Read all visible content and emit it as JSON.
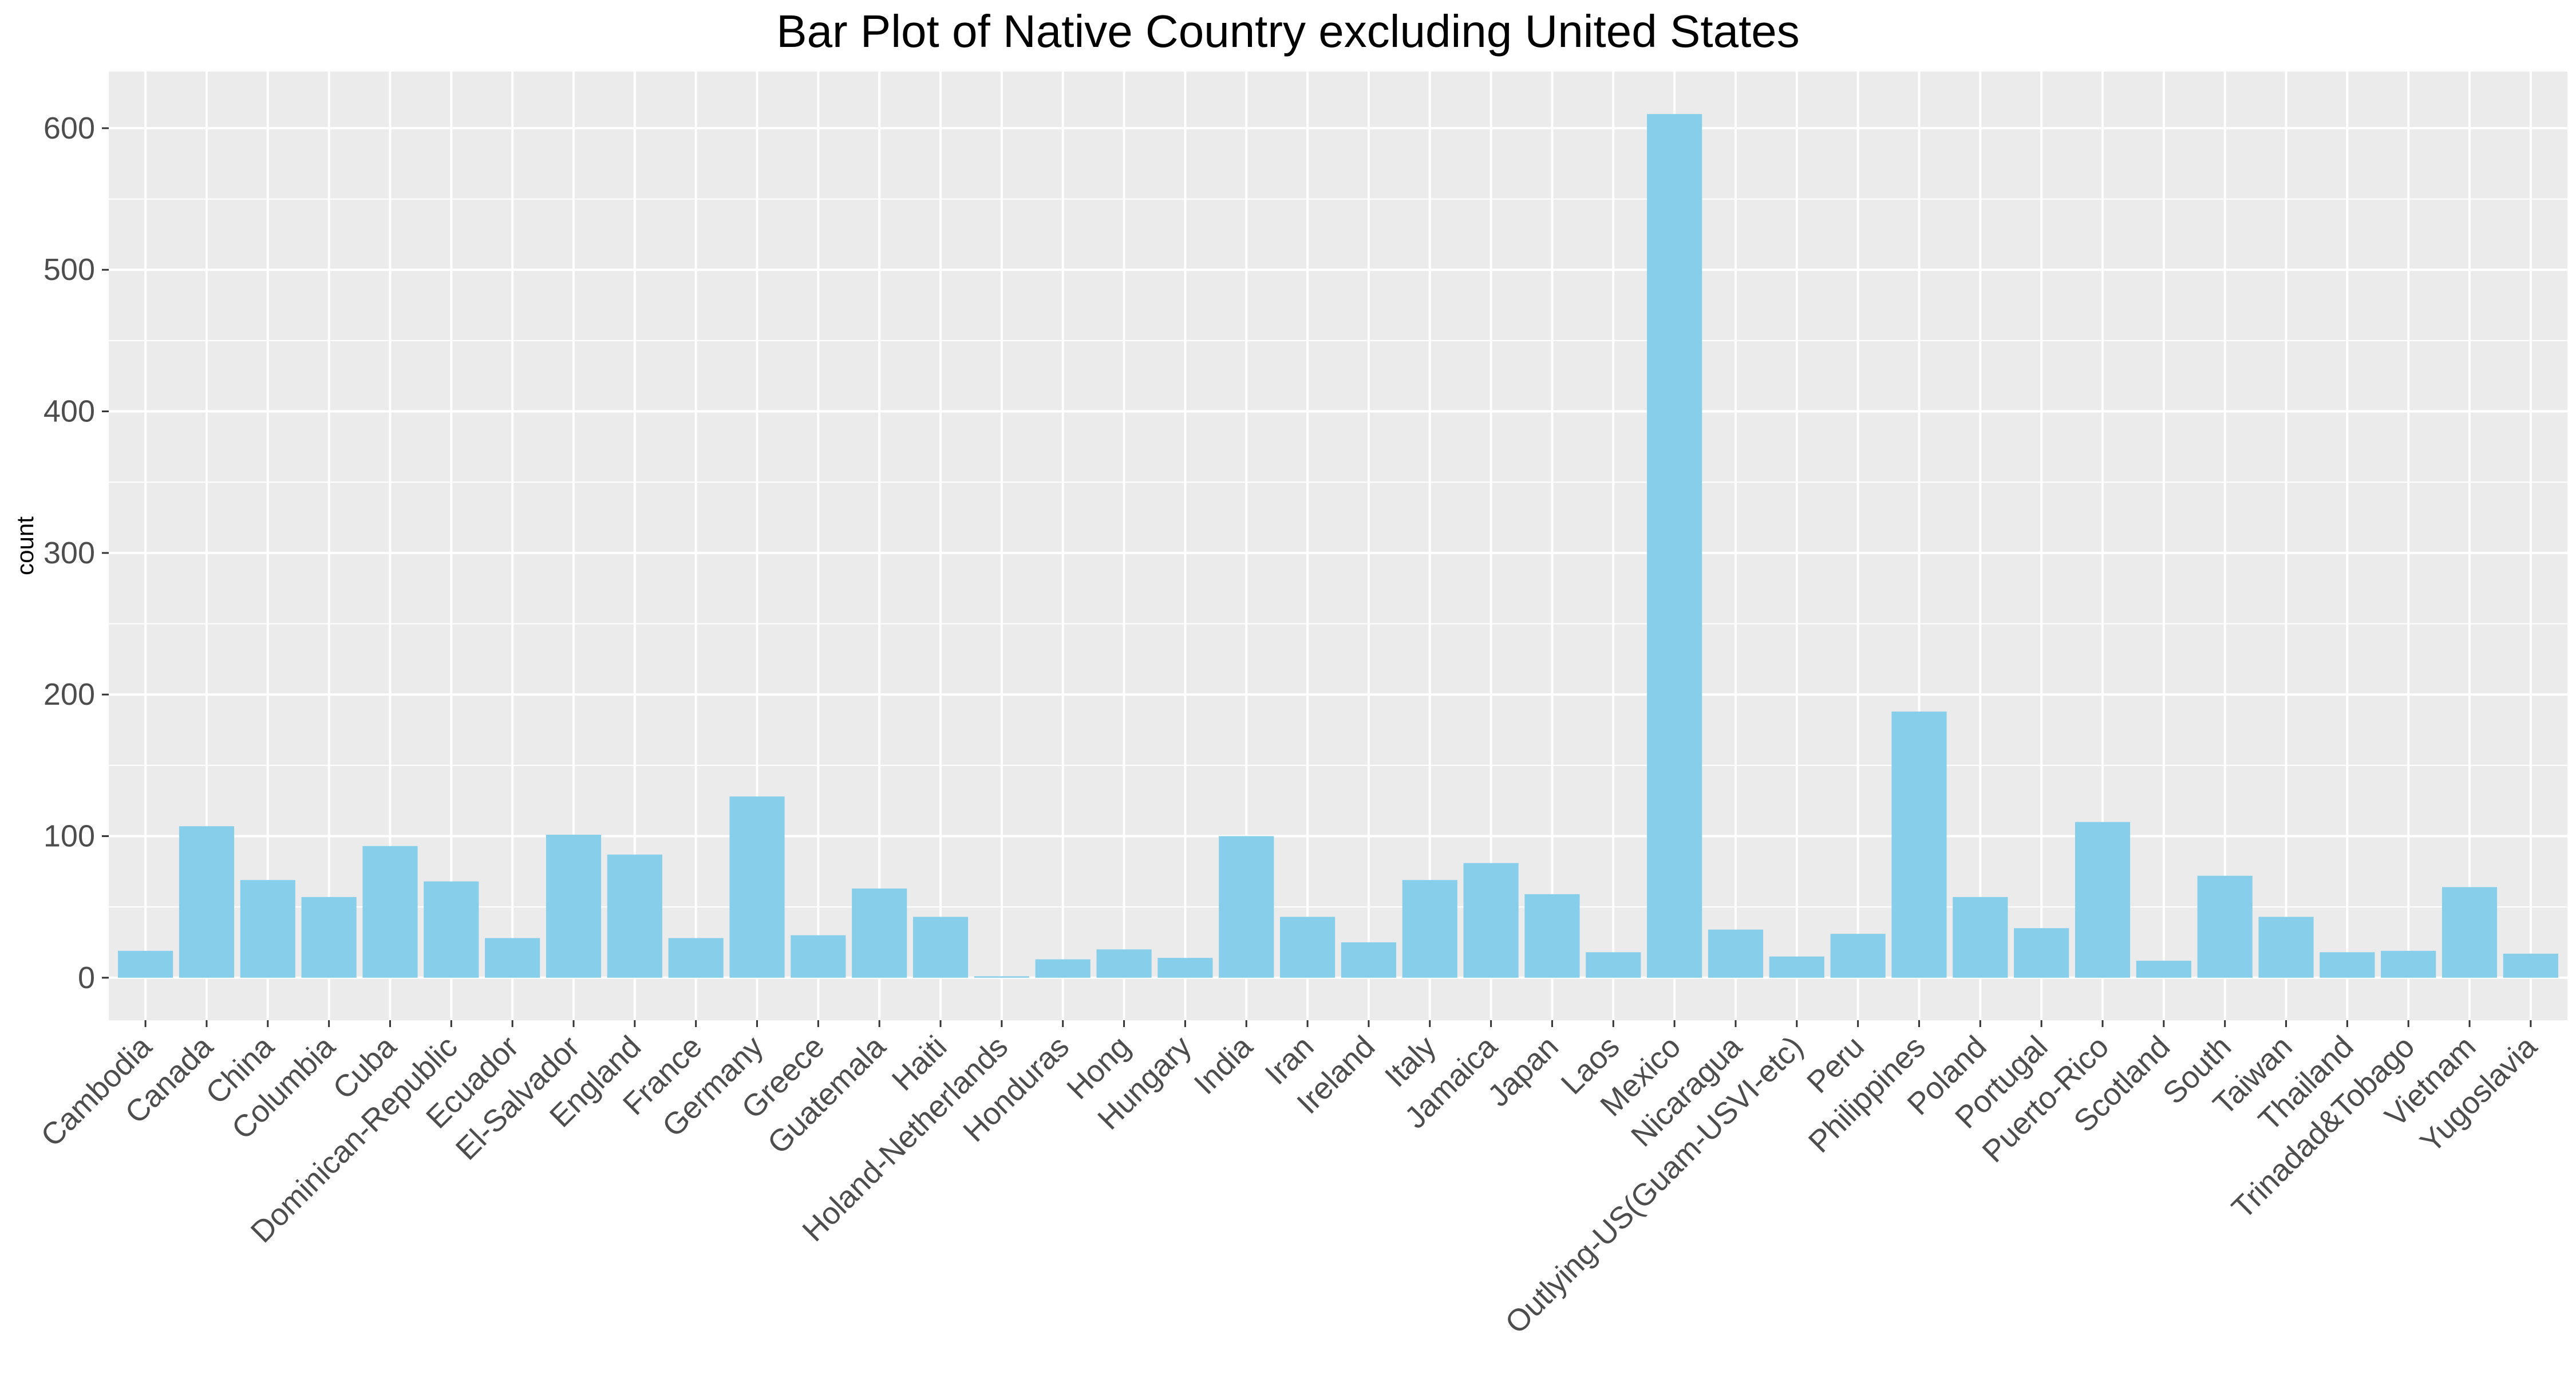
{
  "chart_data": {
    "type": "bar",
    "title": "Bar Plot of Native Country excluding United States",
    "xlabel": "",
    "ylabel": "count",
    "ylim": [
      -30,
      640
    ],
    "yticks": [
      0,
      100,
      200,
      300,
      400,
      500,
      600
    ],
    "grid": true,
    "legend": "none",
    "colors": {
      "bar": "#87ceeb",
      "panel": "#ebebeb",
      "grid": "#ffffff",
      "tick_text": "#4d4d4d"
    },
    "categories": [
      "Cambodia",
      "Canada",
      "China",
      "Columbia",
      "Cuba",
      "Dominican-Republic",
      "Ecuador",
      "El-Salvador",
      "England",
      "France",
      "Germany",
      "Greece",
      "Guatemala",
      "Haiti",
      "Holand-Netherlands",
      "Honduras",
      "Hong",
      "Hungary",
      "India",
      "Iran",
      "Ireland",
      "Italy",
      "Jamaica",
      "Japan",
      "Laos",
      "Mexico",
      "Nicaragua",
      "Outlying-US(Guam-USVI-etc)",
      "Peru",
      "Philippines",
      "Poland",
      "Portugal",
      "Puerto-Rico",
      "Scotland",
      "South",
      "Taiwan",
      "Thailand",
      "Trinadad&Tobago",
      "Vietnam",
      "Yugoslavia"
    ],
    "values": [
      19,
      107,
      69,
      57,
      93,
      68,
      28,
      101,
      87,
      28,
      128,
      30,
      63,
      43,
      1,
      13,
      20,
      14,
      100,
      43,
      25,
      69,
      81,
      59,
      18,
      610,
      34,
      15,
      31,
      188,
      57,
      35,
      110,
      12,
      72,
      43,
      18,
      19,
      64,
      17
    ]
  }
}
